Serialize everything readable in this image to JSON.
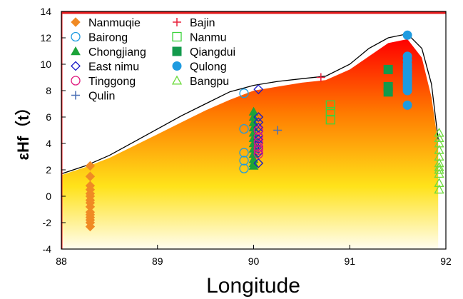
{
  "chart_data": {
    "type": "scatter",
    "xlabel": "Longitude",
    "ylabel": "εHf（t）",
    "xlim": [
      88,
      92
    ],
    "ylim": [
      -4,
      14
    ],
    "x_ticks": [
      "88",
      "89",
      "90",
      "91",
      "92"
    ],
    "y_ticks": [
      "-4",
      "-2",
      "0",
      "2",
      "4",
      "6",
      "8",
      "10",
      "12",
      "14"
    ],
    "grid": false,
    "legend_position": "top-left",
    "envelope": {
      "x": [
        88,
        88.25,
        88.5,
        88.75,
        89,
        89.25,
        89.5,
        89.75,
        90,
        90.25,
        90.5,
        90.75,
        91,
        91.2,
        91.4,
        91.6,
        91.75,
        91.85,
        91.92
      ],
      "y": [
        1.6,
        2.2,
        2.9,
        3.8,
        4.7,
        5.6,
        6.5,
        7.3,
        8.0,
        8.3,
        8.6,
        8.8,
        9.6,
        10.6,
        11.6,
        11.9,
        10.5,
        7.5,
        4.0
      ],
      "outline_y": [
        1.7,
        2.3,
        3.1,
        4.1,
        5.1,
        6.1,
        7.0,
        7.9,
        8.4,
        8.7,
        8.9,
        9.1,
        10.0,
        11.2,
        12.0,
        12.3,
        11.2,
        8.5,
        4.3
      ]
    },
    "series": [
      {
        "name": "Nanmuqie",
        "marker": "diamond-filled",
        "color": "#F08A24",
        "x": [
          88.3,
          88.3,
          88.3,
          88.3,
          88.3,
          88.3,
          88.3,
          88.3,
          88.3,
          88.3,
          88.3,
          88.3,
          88.3,
          88.3,
          88.3
        ],
        "y": [
          2.3,
          1.5,
          0.8,
          0.5,
          0.2,
          0.0,
          -0.3,
          -0.5,
          -0.8,
          -1.2,
          -1.4,
          -1.6,
          -1.8,
          -2.0,
          -2.3
        ]
      },
      {
        "name": "Bairong",
        "marker": "circle-open",
        "color": "#1E9BE0",
        "x": [
          89.9,
          89.9,
          89.9,
          89.9,
          89.9
        ],
        "y": [
          7.8,
          5.1,
          3.3,
          2.7,
          2.1
        ]
      },
      {
        "name": "Chongjiang",
        "marker": "triangle-filled",
        "color": "#1BA338",
        "x": [
          90,
          90,
          90,
          90,
          90,
          90,
          90,
          90,
          90,
          90,
          90,
          90
        ],
        "y": [
          6.4,
          6.0,
          5.6,
          5.2,
          4.8,
          4.4,
          4.0,
          3.6,
          3.2,
          2.8,
          2.5,
          2.3
        ]
      },
      {
        "name": "East nimu",
        "marker": "diamond-open",
        "color": "#1A1AC8",
        "x": [
          90.05,
          90.05,
          90.05,
          90.05,
          90.05,
          90.05,
          90.05,
          90.05,
          90.05,
          90.05,
          90.05,
          90.05
        ],
        "y": [
          8.1,
          6.0,
          5.6,
          5.2,
          4.9,
          4.6,
          4.3,
          4.0,
          3.8,
          3.6,
          3.3,
          2.5
        ]
      },
      {
        "name": "Tinggong",
        "marker": "circle-open",
        "color": "#E0197E",
        "x": [
          90.05,
          90.05,
          90.05,
          90.05,
          90.05,
          90.05
        ],
        "y": [
          5.0,
          4.5,
          4.1,
          3.7,
          3.5,
          3.2
        ]
      },
      {
        "name": "Qulin",
        "marker": "plus",
        "color": "#4A6FB5",
        "x": [
          90.25
        ],
        "y": [
          5.0
        ]
      },
      {
        "name": "Bajin",
        "marker": "plus",
        "color": "#E8203A",
        "x": [
          90.7
        ],
        "y": [
          9.0
        ]
      },
      {
        "name": "Nanmu",
        "marker": "square-open",
        "color": "#3CD33C",
        "x": [
          90.8,
          90.8,
          90.8
        ],
        "y": [
          6.9,
          6.4,
          5.8
        ]
      },
      {
        "name": "Qiangdui",
        "marker": "square-filled",
        "color": "#139A4C",
        "x": [
          91.4,
          91.4,
          91.4
        ],
        "y": [
          9.6,
          8.3,
          7.9
        ]
      },
      {
        "name": "Qulong",
        "marker": "circle-filled",
        "color": "#1E9BE0",
        "x": [
          91.6,
          91.6,
          91.6,
          91.6,
          91.6,
          91.6,
          91.6,
          91.6,
          91.6,
          91.6,
          91.6,
          91.6,
          91.6,
          91.6,
          91.6
        ],
        "y": [
          12.2,
          10.6,
          10.3,
          10.0,
          9.8,
          9.6,
          9.4,
          9.2,
          9.0,
          8.8,
          8.6,
          8.4,
          8.2,
          8.0,
          6.9
        ]
      },
      {
        "name": "Bangpu",
        "marker": "triangle-open",
        "color": "#6CDB3C",
        "x": [
          91.93,
          91.93,
          91.93,
          91.93,
          91.93,
          91.93,
          91.93,
          91.93,
          91.93,
          91.93,
          91.93
        ],
        "y": [
          4.8,
          4.4,
          4.0,
          3.5,
          3.0,
          2.5,
          2.2,
          2.0,
          1.7,
          1.0,
          0.5
        ]
      }
    ]
  }
}
